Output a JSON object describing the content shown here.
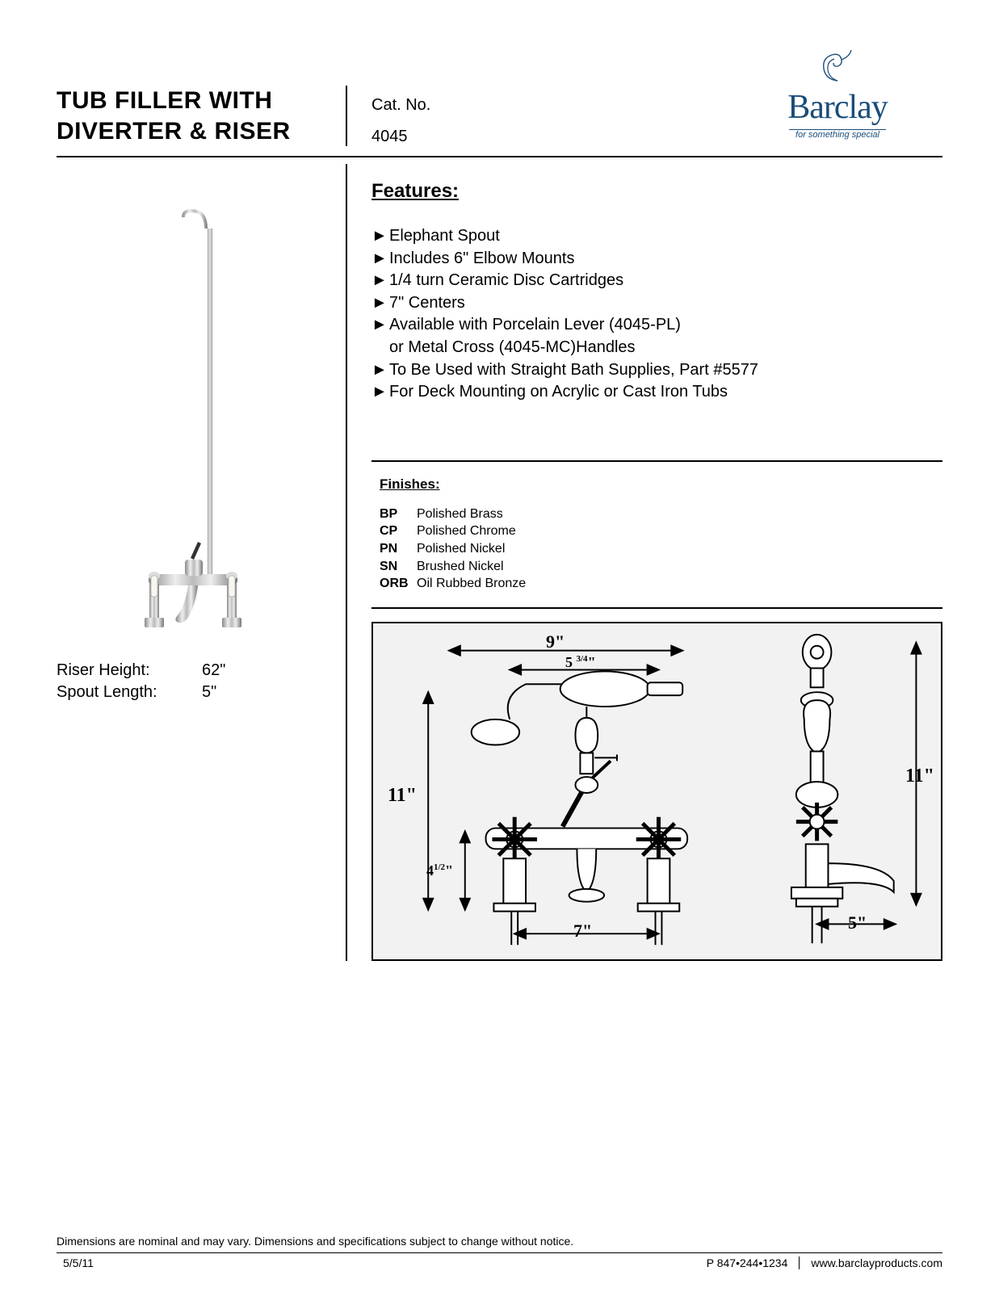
{
  "header": {
    "title_line1": "TUB FILLER WITH",
    "title_line2": "DIVERTER & RISER",
    "cat_label": "Cat. No.",
    "cat_no": "4045",
    "brand": "Barclay",
    "tagline": "for something special"
  },
  "specs": {
    "rows": [
      {
        "label": "Riser Height:",
        "value": "62\""
      },
      {
        "label": "Spout Length:",
        "value": "5\""
      }
    ]
  },
  "features": {
    "heading": "Features:",
    "items": [
      [
        "Elephant Spout"
      ],
      [
        "Includes 6\" Elbow Mounts"
      ],
      [
        "1/4 turn Ceramic Disc Cartridges"
      ],
      [
        "7\" Centers"
      ],
      [
        "Available with Porcelain Lever (4045-PL)",
        "or Metal Cross (4045-MC)Handles"
      ],
      [
        "To Be Used with Straight Bath Supplies, Part #5577"
      ],
      [
        "For Deck Mounting on Acrylic or Cast Iron Tubs"
      ]
    ]
  },
  "finishes": {
    "heading": "Finishes:",
    "rows": [
      {
        "code": "BP",
        "name": "Polished Brass"
      },
      {
        "code": "CP",
        "name": "Polished Chrome"
      },
      {
        "code": "PN",
        "name": "Polished Nickel"
      },
      {
        "code": "SN",
        "name": "Brushed Nickel"
      },
      {
        "code": "ORB",
        "name": "Oil Rubbed Bronze"
      }
    ]
  },
  "diagram": {
    "dims": {
      "width_top": "9\"",
      "width_inner": "5 3/4\"",
      "height_left": "11\"",
      "height_right": "11\"",
      "height_lower": "4 1/2\"",
      "centers": "7\"",
      "spout": "5\""
    }
  },
  "footer": {
    "disclaimer": "Dimensions are nominal and may vary.   Dimensions and specifications subject to change without notice.",
    "date": "5/5/11",
    "phone": "P 847•244•1234",
    "url": "www.barclayproducts.com"
  }
}
